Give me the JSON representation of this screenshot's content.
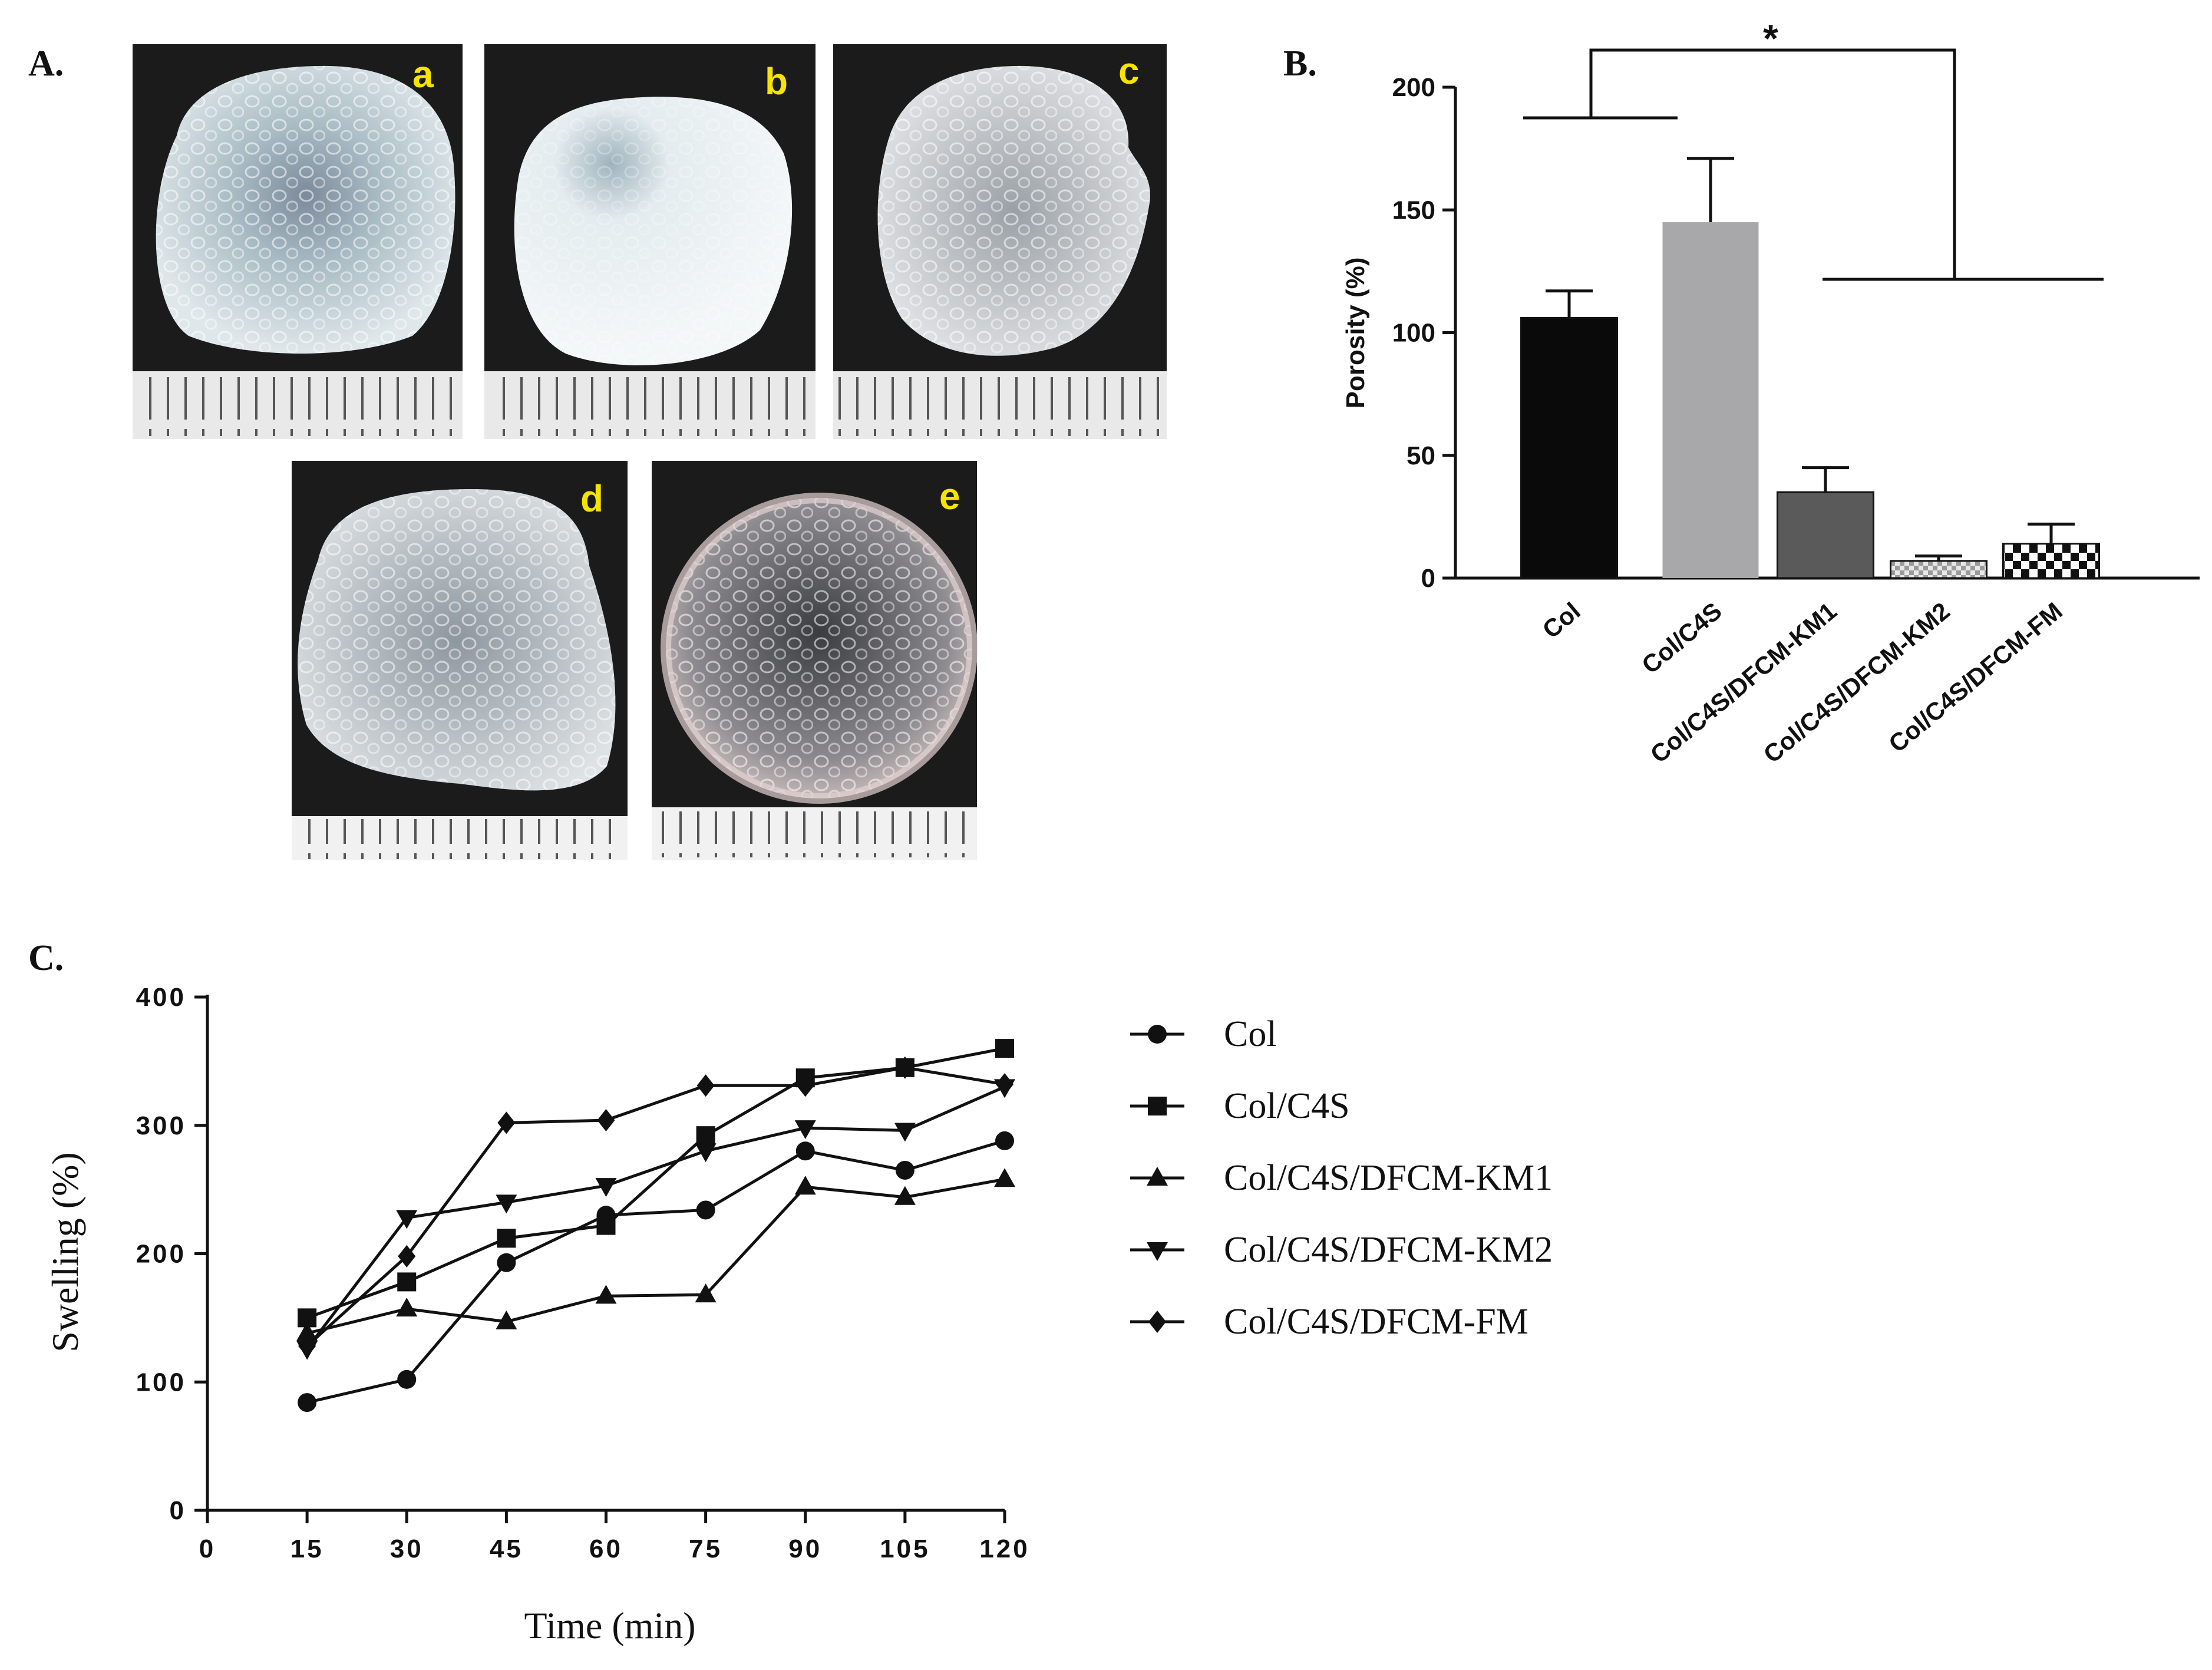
{
  "panels": {
    "a_label": "A.",
    "b_label": "B.",
    "c_label": "C."
  },
  "photos": {
    "items": [
      {
        "letter": "a"
      },
      {
        "letter": "b"
      },
      {
        "letter": "c"
      },
      {
        "letter": "d"
      },
      {
        "letter": "e"
      }
    ]
  },
  "chart_data": [
    {
      "type": "bar",
      "categories": [
        "Col",
        "Col/C4S",
        "Col/C4S/DFCM-KM1",
        "Col/C4S/DFCM-KM2",
        "Col/C4S/DFCM-FM"
      ],
      "values": [
        106,
        145,
        35,
        7,
        14
      ],
      "errors": [
        11,
        26,
        10,
        2,
        8
      ],
      "fills": [
        "solid-black",
        "solid-light-gray",
        "solid-dark-gray",
        "checker-light",
        "checker-black"
      ],
      "ylabel": "Porosity (%)",
      "ylim": [
        0,
        200
      ],
      "yticks": [
        "0",
        "50",
        "100",
        "150",
        "200"
      ],
      "significance": "*"
    },
    {
      "type": "line",
      "x": [
        15,
        30,
        45,
        60,
        75,
        90,
        105,
        120
      ],
      "xticks": [
        "0",
        "15",
        "30",
        "45",
        "60",
        "75",
        "90",
        "105",
        "120"
      ],
      "yticks": [
        "0",
        "100",
        "200",
        "300",
        "400"
      ],
      "xlabel": "Time (min)",
      "ylabel": "Swelling  (%)",
      "xlim": [
        0,
        120
      ],
      "ylim": [
        0,
        400
      ],
      "legend_position": "right",
      "series": [
        {
          "name": "Col",
          "marker": "circle",
          "values": [
            84,
            102,
            193,
            230,
            234,
            280,
            265,
            288
          ]
        },
        {
          "name": "Col/C4S",
          "marker": "square",
          "values": [
            150,
            178,
            212,
            222,
            292,
            337,
            345,
            360
          ]
        },
        {
          "name": "Col/C4S/DFCM-KM1",
          "marker": "triangle-up",
          "values": [
            138,
            157,
            147,
            167,
            168,
            252,
            244,
            258
          ]
        },
        {
          "name": "Col/C4S/DFCM-KM2",
          "marker": "triangle-down",
          "values": [
            126,
            228,
            240,
            253,
            280,
            298,
            296,
            330
          ]
        },
        {
          "name": "Col/C4S/DFCM-FM",
          "marker": "diamond",
          "values": [
            128,
            198,
            302,
            304,
            331,
            331,
            345,
            332
          ]
        }
      ]
    }
  ]
}
